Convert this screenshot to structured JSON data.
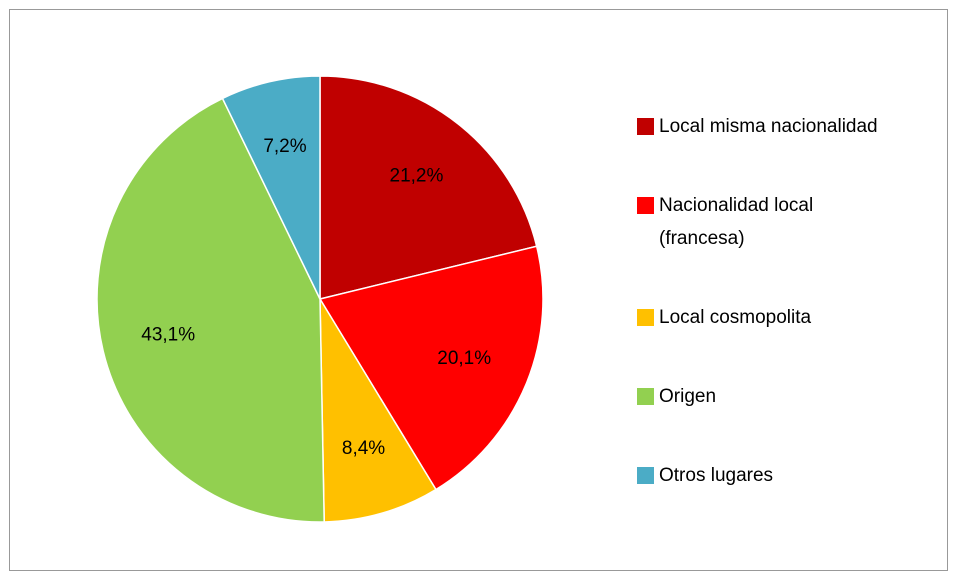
{
  "chart_data": {
    "type": "pie",
    "categories": [
      "Local misma nacionalidad",
      "Nacionalidad local (francesa)",
      "Local cosmopolita",
      "Origen",
      "Otros lugares"
    ],
    "values": [
      21.2,
      20.1,
      8.4,
      43.1,
      7.2
    ],
    "value_labels": [
      "21,2%",
      "20,1%",
      "8,4%",
      "43,1%",
      "7,2%"
    ],
    "colors": [
      "#c00000",
      "#ff0000",
      "#ffc000",
      "#92d050",
      "#4bacc6"
    ],
    "legend": "right"
  }
}
